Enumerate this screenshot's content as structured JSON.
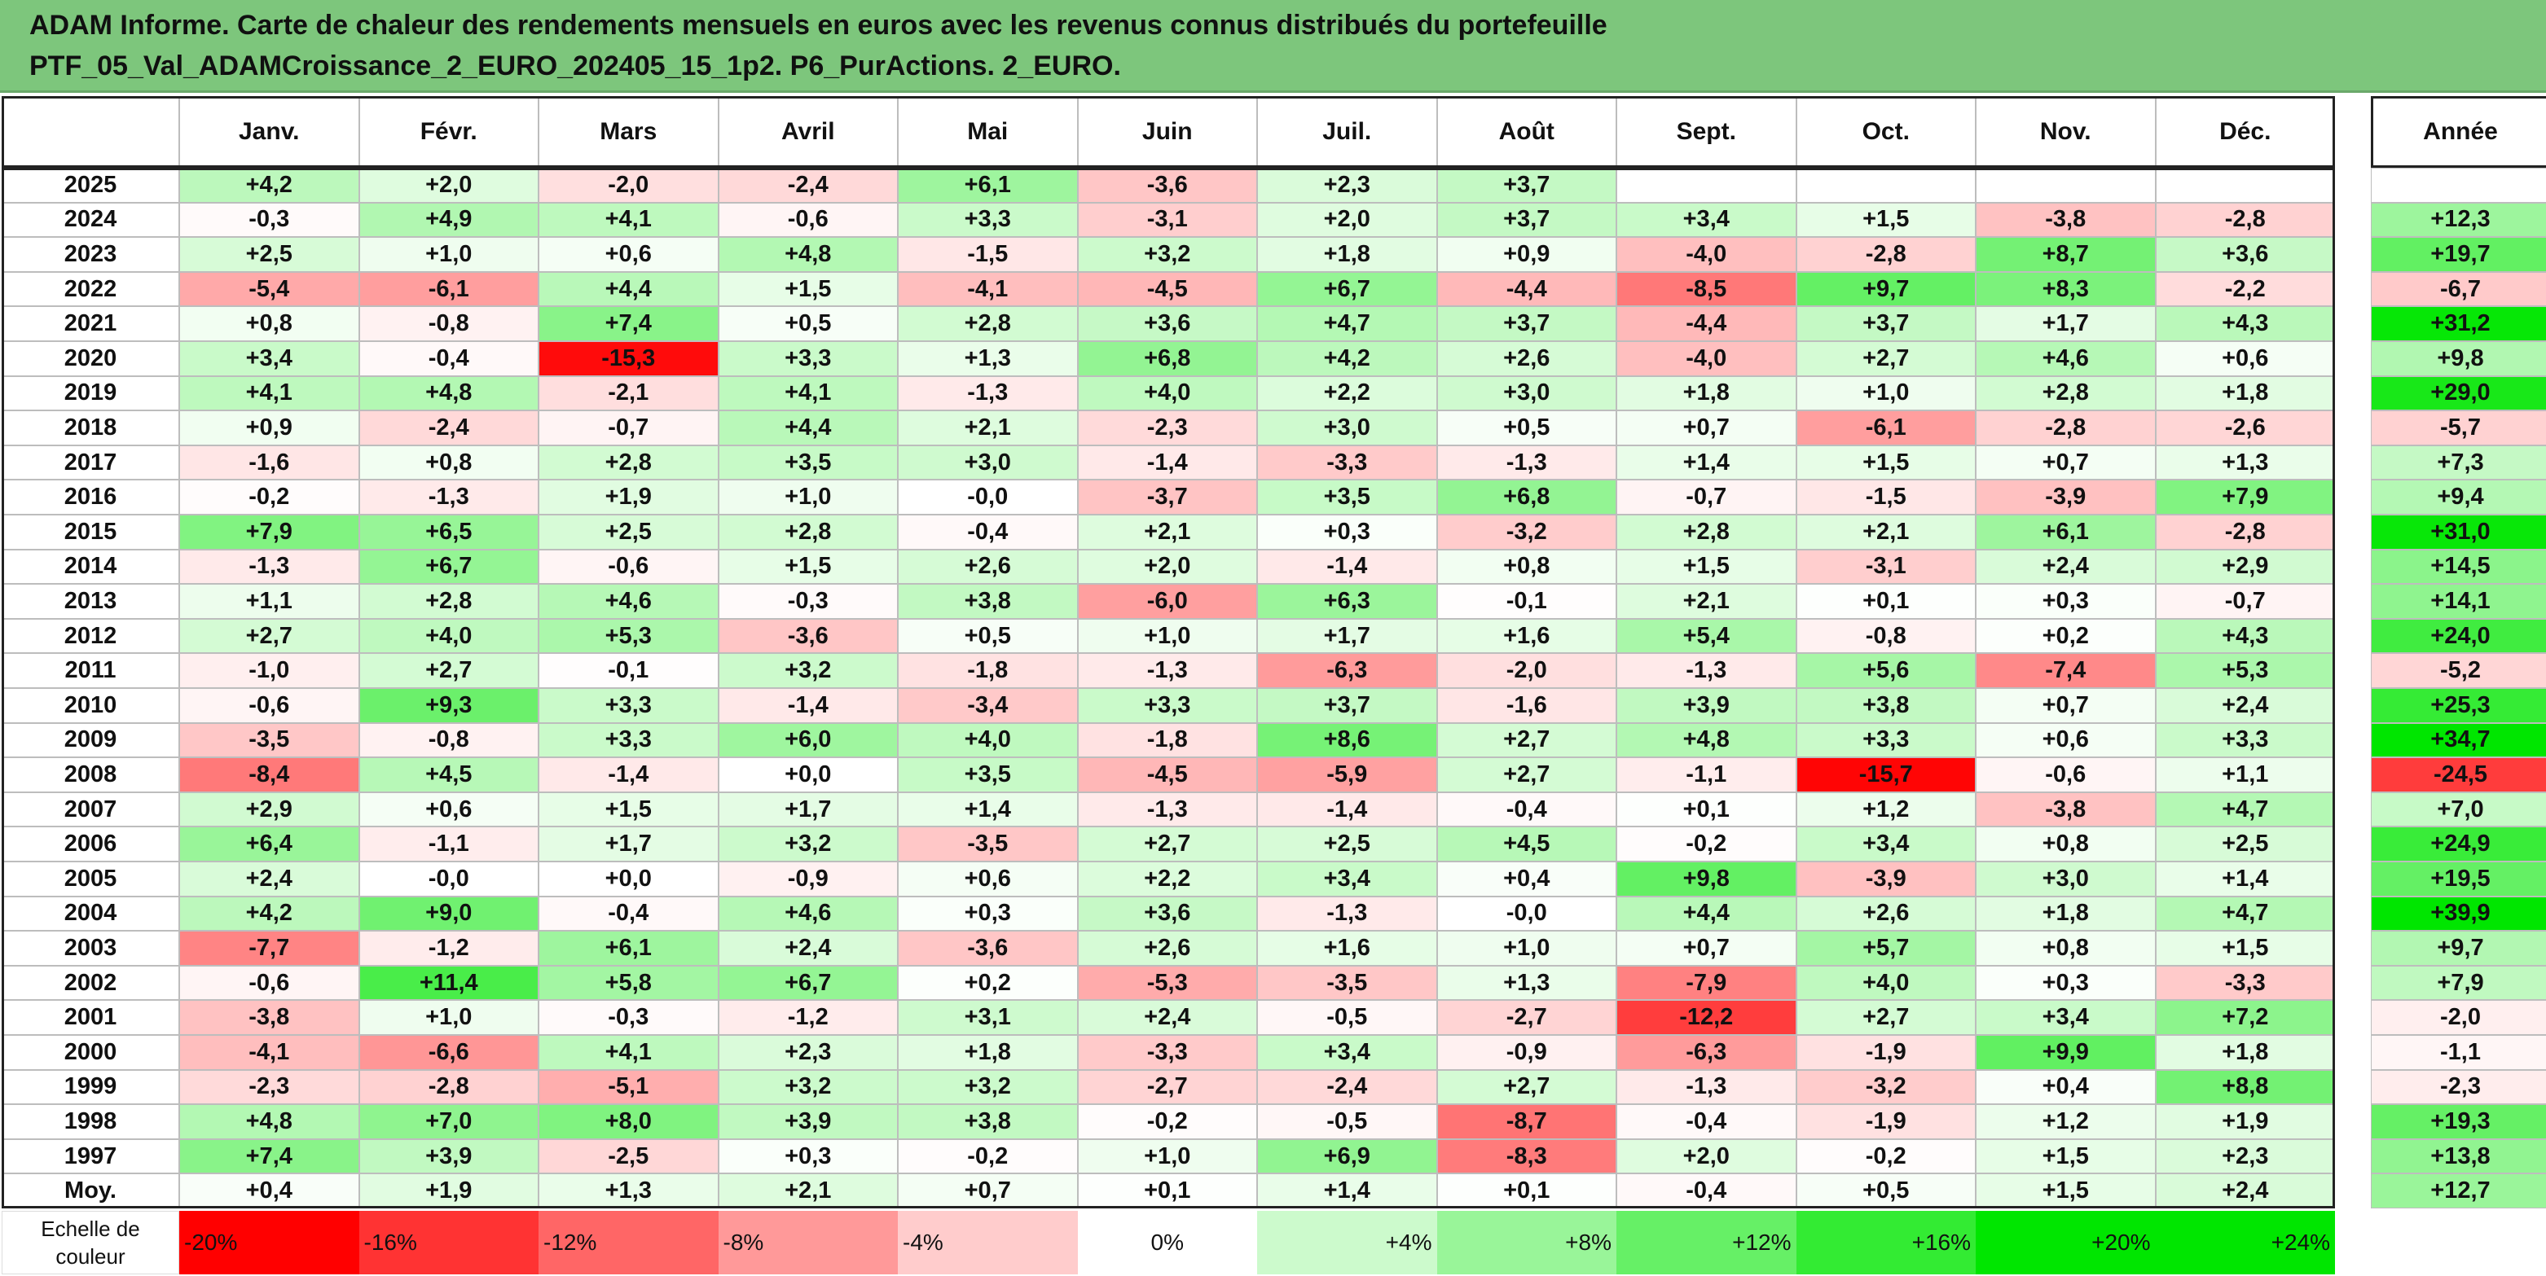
{
  "chart_data": {
    "type": "heatmap",
    "title": "ADAM Informe. Carte de chaleur des rendements mensuels en euros avec les revenus connus distribués du portefeuille",
    "subtitle": "PTF_05_Val_ADAMCroissance_2_EURO_202405_15_1p2. P6_PurActions. 2_EURO.",
    "columns": [
      "Janv.",
      "Févr.",
      "Mars",
      "Avril",
      "Mai",
      "Juin",
      "Juil.",
      "Août",
      "Sept.",
      "Oct.",
      "Nov.",
      "Déc."
    ],
    "year_column": "Année",
    "rows": [
      {
        "label": "2025",
        "values": [
          "+4,2",
          "+2,0",
          "-2,0",
          "-2,4",
          "+6,1",
          "-3,6",
          "+2,3",
          "+3,7",
          "",
          "",
          "",
          ""
        ],
        "year": ""
      },
      {
        "label": "2024",
        "values": [
          "-0,3",
          "+4,9",
          "+4,1",
          "-0,6",
          "+3,3",
          "-3,1",
          "+2,0",
          "+3,7",
          "+3,4",
          "+1,5",
          "-3,8",
          "-2,8"
        ],
        "year": "+12,3"
      },
      {
        "label": "2023",
        "values": [
          "+2,5",
          "+1,0",
          "+0,6",
          "+4,8",
          "-1,5",
          "+3,2",
          "+1,8",
          "+0,9",
          "-4,0",
          "-2,8",
          "+8,7",
          "+3,6"
        ],
        "year": "+19,7"
      },
      {
        "label": "2022",
        "values": [
          "-5,4",
          "-6,1",
          "+4,4",
          "+1,5",
          "-4,1",
          "-4,5",
          "+6,7",
          "-4,4",
          "-8,5",
          "+9,7",
          "+8,3",
          "-2,2"
        ],
        "year": "-6,7"
      },
      {
        "label": "2021",
        "values": [
          "+0,8",
          "-0,8",
          "+7,4",
          "+0,5",
          "+2,8",
          "+3,6",
          "+4,7",
          "+3,7",
          "-4,4",
          "+3,7",
          "+1,7",
          "+4,3"
        ],
        "year": "+31,2"
      },
      {
        "label": "2020",
        "values": [
          "+3,4",
          "-0,4",
          "-15,3",
          "+3,3",
          "+1,3",
          "+6,8",
          "+4,2",
          "+2,6",
          "-4,0",
          "+2,7",
          "+4,6",
          "+0,6"
        ],
        "year": "+9,8"
      },
      {
        "label": "2019",
        "values": [
          "+4,1",
          "+4,8",
          "-2,1",
          "+4,1",
          "-1,3",
          "+4,0",
          "+2,2",
          "+3,0",
          "+1,8",
          "+1,0",
          "+2,8",
          "+1,8"
        ],
        "year": "+29,0"
      },
      {
        "label": "2018",
        "values": [
          "+0,9",
          "-2,4",
          "-0,7",
          "+4,4",
          "+2,1",
          "-2,3",
          "+3,0",
          "+0,5",
          "+0,7",
          "-6,1",
          "-2,8",
          "-2,6"
        ],
        "year": "-5,7"
      },
      {
        "label": "2017",
        "values": [
          "-1,6",
          "+0,8",
          "+2,8",
          "+3,5",
          "+3,0",
          "-1,4",
          "-3,3",
          "-1,3",
          "+1,4",
          "+1,5",
          "+0,7",
          "+1,3"
        ],
        "year": "+7,3"
      },
      {
        "label": "2016",
        "values": [
          "-0,2",
          "-1,3",
          "+1,9",
          "+1,0",
          "-0,0",
          "-3,7",
          "+3,5",
          "+6,8",
          "-0,7",
          "-1,5",
          "-3,9",
          "+7,9"
        ],
        "year": "+9,4"
      },
      {
        "label": "2015",
        "values": [
          "+7,9",
          "+6,5",
          "+2,5",
          "+2,8",
          "-0,4",
          "+2,1",
          "+0,3",
          "-3,2",
          "+2,8",
          "+2,1",
          "+6,1",
          "-2,8"
        ],
        "year": "+31,0"
      },
      {
        "label": "2014",
        "values": [
          "-1,3",
          "+6,7",
          "-0,6",
          "+1,5",
          "+2,6",
          "+2,0",
          "-1,4",
          "+0,8",
          "+1,5",
          "-3,1",
          "+2,4",
          "+2,9"
        ],
        "year": "+14,5"
      },
      {
        "label": "2013",
        "values": [
          "+1,1",
          "+2,8",
          "+4,6",
          "-0,3",
          "+3,8",
          "-6,0",
          "+6,3",
          "-0,1",
          "+2,1",
          "+0,1",
          "+0,3",
          "-0,7"
        ],
        "year": "+14,1"
      },
      {
        "label": "2012",
        "values": [
          "+2,7",
          "+4,0",
          "+5,3",
          "-3,6",
          "+0,5",
          "+1,0",
          "+1,7",
          "+1,6",
          "+5,4",
          "-0,8",
          "+0,2",
          "+4,3"
        ],
        "year": "+24,0"
      },
      {
        "label": "2011",
        "values": [
          "-1,0",
          "+2,7",
          "-0,1",
          "+3,2",
          "-1,8",
          "-1,3",
          "-6,3",
          "-2,0",
          "-1,3",
          "+5,6",
          "-7,4",
          "+5,3"
        ],
        "year": "-5,2"
      },
      {
        "label": "2010",
        "values": [
          "-0,6",
          "+9,3",
          "+3,3",
          "-1,4",
          "-3,4",
          "+3,3",
          "+3,7",
          "-1,6",
          "+3,9",
          "+3,8",
          "+0,7",
          "+2,4"
        ],
        "year": "+25,3"
      },
      {
        "label": "2009",
        "values": [
          "-3,5",
          "-0,8",
          "+3,3",
          "+6,0",
          "+4,0",
          "-1,8",
          "+8,6",
          "+2,7",
          "+4,8",
          "+3,3",
          "+0,6",
          "+3,3"
        ],
        "year": "+34,7"
      },
      {
        "label": "2008",
        "values": [
          "-8,4",
          "+4,5",
          "-1,4",
          "+0,0",
          "+3,5",
          "-4,5",
          "-5,9",
          "+2,7",
          "-1,1",
          "-15,7",
          "-0,6",
          "+1,1"
        ],
        "year": "-24,5"
      },
      {
        "label": "2007",
        "values": [
          "+2,9",
          "+0,6",
          "+1,5",
          "+1,7",
          "+1,4",
          "-1,3",
          "-1,4",
          "-0,4",
          "+0,1",
          "+1,2",
          "-3,8",
          "+4,7"
        ],
        "year": "+7,0"
      },
      {
        "label": "2006",
        "values": [
          "+6,4",
          "-1,1",
          "+1,7",
          "+3,2",
          "-3,5",
          "+2,7",
          "+2,5",
          "+4,5",
          "-0,2",
          "+3,4",
          "+0,8",
          "+2,5"
        ],
        "year": "+24,9"
      },
      {
        "label": "2005",
        "values": [
          "+2,4",
          "-0,0",
          "+0,0",
          "-0,9",
          "+0,6",
          "+2,2",
          "+3,4",
          "+0,4",
          "+9,8",
          "-3,9",
          "+3,0",
          "+1,4"
        ],
        "year": "+19,5"
      },
      {
        "label": "2004",
        "values": [
          "+4,2",
          "+9,0",
          "-0,4",
          "+4,6",
          "+0,3",
          "+3,6",
          "-1,3",
          "-0,0",
          "+4,4",
          "+2,6",
          "+1,8",
          "+4,7"
        ],
        "year": "+39,9"
      },
      {
        "label": "2003",
        "values": [
          "-7,7",
          "-1,2",
          "+6,1",
          "+2,4",
          "-3,6",
          "+2,6",
          "+1,6",
          "+1,0",
          "+0,7",
          "+5,7",
          "+0,8",
          "+1,5"
        ],
        "year": "+9,7"
      },
      {
        "label": "2002",
        "values": [
          "-0,6",
          "+11,4",
          "+5,8",
          "+6,7",
          "+0,2",
          "-5,3",
          "-3,5",
          "+1,3",
          "-7,9",
          "+4,0",
          "+0,3",
          "-3,3"
        ],
        "year": "+7,9"
      },
      {
        "label": "2001",
        "values": [
          "-3,8",
          "+1,0",
          "-0,3",
          "-1,2",
          "+3,1",
          "+2,4",
          "-0,5",
          "-2,7",
          "-12,2",
          "+2,7",
          "+3,4",
          "+7,2"
        ],
        "year": "-2,0"
      },
      {
        "label": "2000",
        "values": [
          "-4,1",
          "-6,6",
          "+4,1",
          "+2,3",
          "+1,8",
          "-3,3",
          "+3,4",
          "-0,9",
          "-6,3",
          "-1,9",
          "+9,9",
          "+1,8"
        ],
        "year": "-1,1"
      },
      {
        "label": "1999",
        "values": [
          "-2,3",
          "-2,8",
          "-5,1",
          "+3,2",
          "+3,2",
          "-2,7",
          "-2,4",
          "+2,7",
          "-1,3",
          "-3,2",
          "+0,4",
          "+8,8"
        ],
        "year": "-2,3"
      },
      {
        "label": "1998",
        "values": [
          "+4,8",
          "+7,0",
          "+8,0",
          "+3,9",
          "+3,8",
          "-0,2",
          "-0,5",
          "-8,7",
          "-0,4",
          "-1,9",
          "+1,2",
          "+1,9"
        ],
        "year": "+19,3"
      },
      {
        "label": "1997",
        "values": [
          "+7,4",
          "+3,9",
          "-2,5",
          "+0,3",
          "-0,2",
          "+1,0",
          "+6,9",
          "-8,3",
          "+2,0",
          "-0,2",
          "+1,5",
          "+2,3"
        ],
        "year": "+13,8"
      }
    ],
    "average_row": {
      "label": "Moy.",
      "values": [
        "+0,4",
        "+1,9",
        "+1,3",
        "+2,1",
        "+0,7",
        "+0,1",
        "+1,4",
        "+0,1",
        "-0,4",
        "+0,5",
        "+1,5",
        "+2,4"
      ],
      "year": "+12,7"
    },
    "color_scale": {
      "label": "Echelle de couleur",
      "steps": [
        "-20%",
        "-16%",
        "-12%",
        "-8%",
        "-4%",
        "0%",
        "+4%",
        "+8%",
        "+12%",
        "+16%",
        "+20%",
        "+24%"
      ],
      "step_values": [
        -20,
        -16,
        -12,
        -8,
        -4,
        0,
        4,
        8,
        12,
        16,
        20,
        24
      ],
      "negative_color": "#ff0000",
      "positive_color": "#00e600",
      "neutral_color": "#ffffff"
    }
  }
}
